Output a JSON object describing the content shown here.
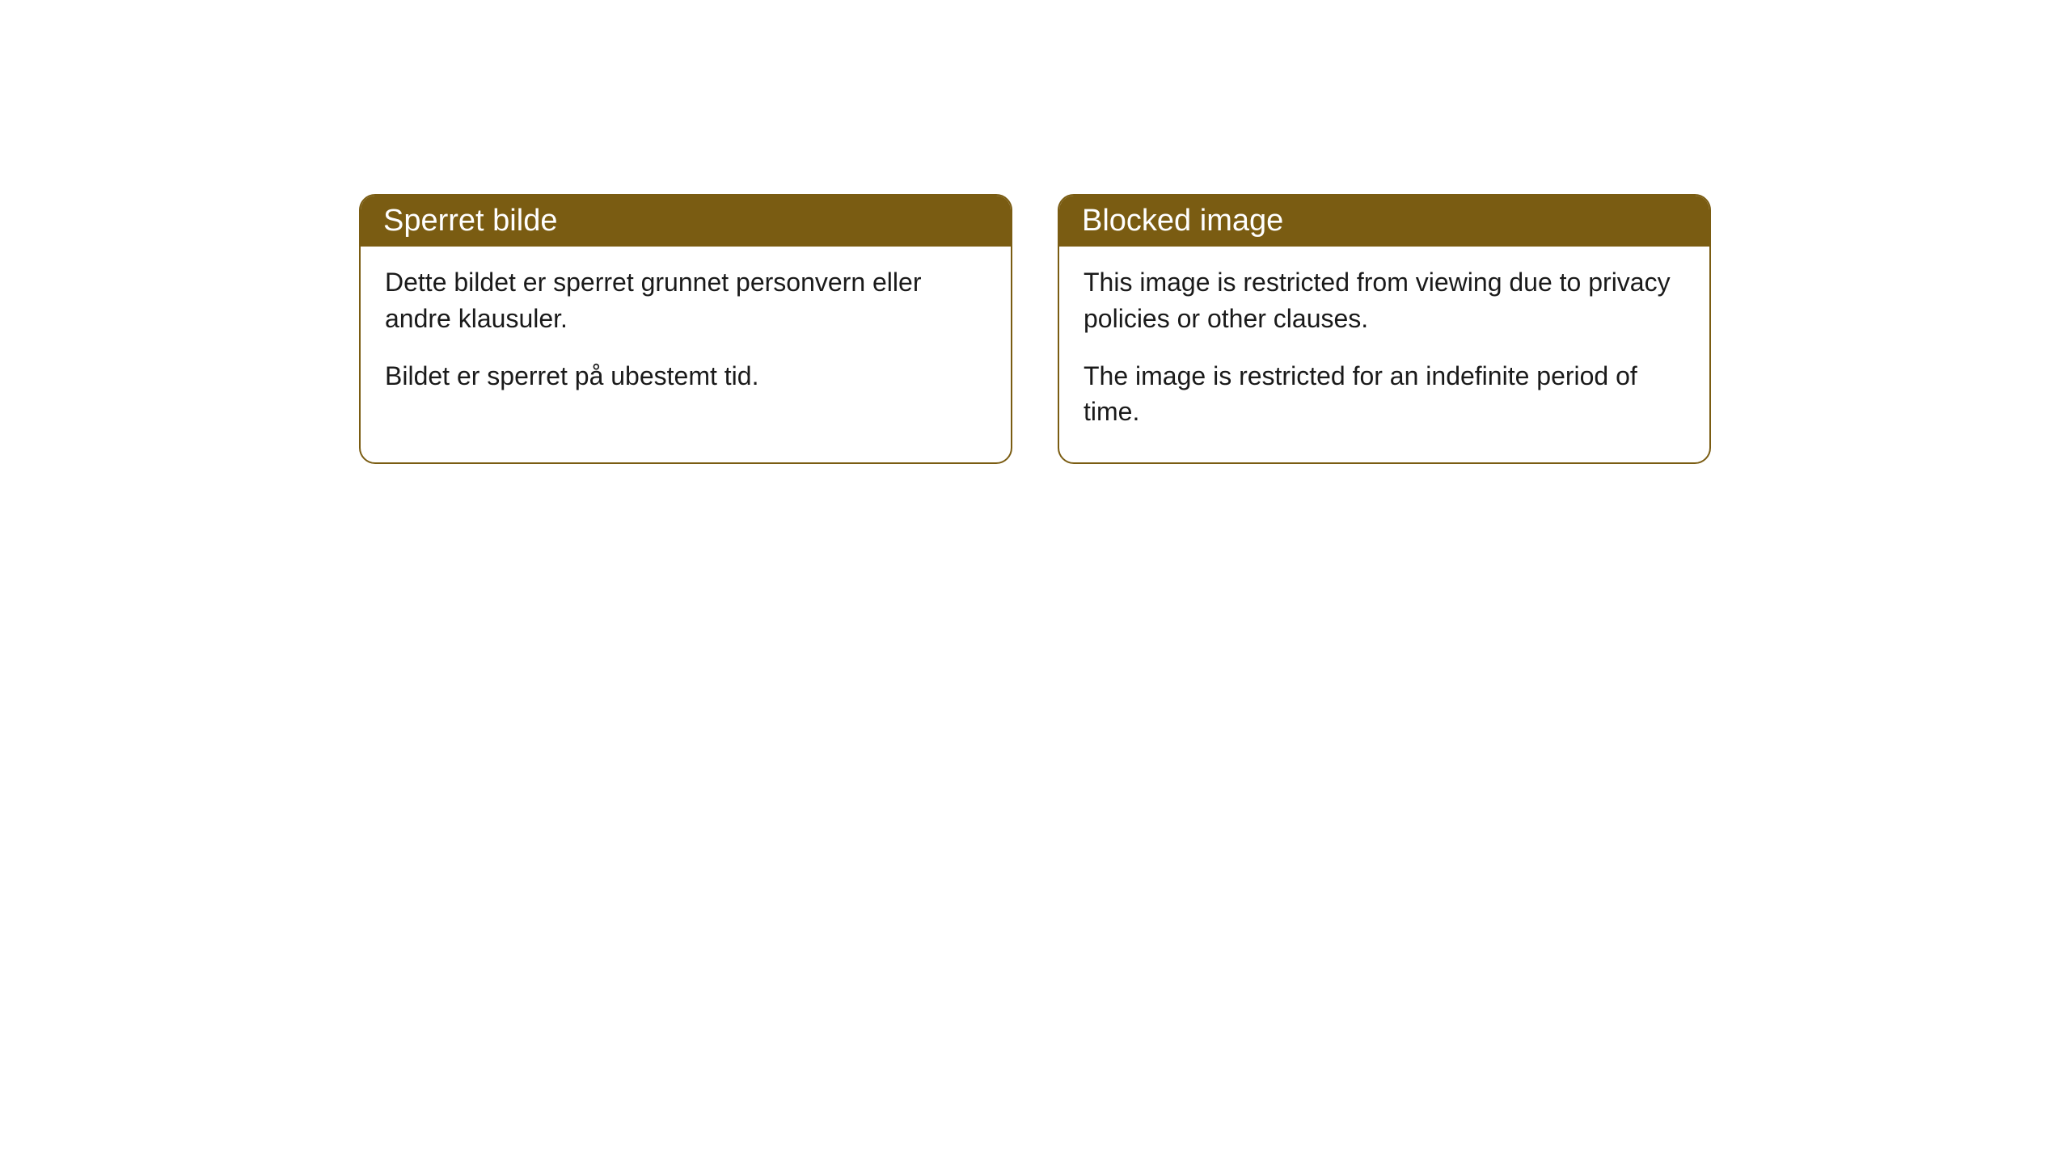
{
  "cards": [
    {
      "title": "Sperret bilde",
      "paragraph1": "Dette bildet er sperret grunnet personvern eller andre klausuler.",
      "paragraph2": "Bildet er sperret på ubestemt tid."
    },
    {
      "title": "Blocked image",
      "paragraph1": "This image is restricted from viewing due to privacy policies or other clauses.",
      "paragraph2": "The image is restricted for an indefinite period of time."
    }
  ],
  "style": {
    "header_bg_color": "#7a5c12",
    "header_text_color": "#ffffff",
    "border_color": "#7a5c12",
    "body_text_color": "#1a1a1a",
    "background_color": "#ffffff",
    "border_radius": 20,
    "header_fontsize": 38,
    "body_fontsize": 32
  }
}
